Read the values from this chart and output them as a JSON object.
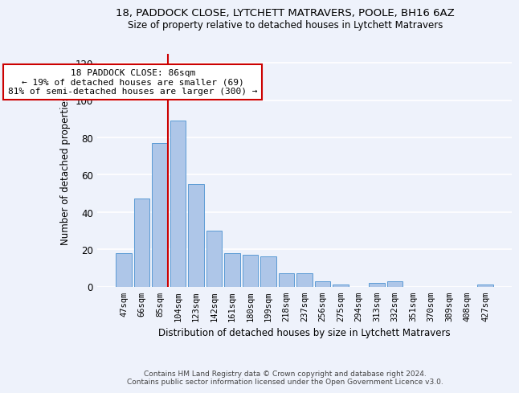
{
  "title": "18, PADDOCK CLOSE, LYTCHETT MATRAVERS, POOLE, BH16 6AZ",
  "subtitle": "Size of property relative to detached houses in Lytchett Matravers",
  "xlabel": "Distribution of detached houses by size in Lytchett Matravers",
  "ylabel": "Number of detached properties",
  "bar_labels": [
    "47sqm",
    "66sqm",
    "85sqm",
    "104sqm",
    "123sqm",
    "142sqm",
    "161sqm",
    "180sqm",
    "199sqm",
    "218sqm",
    "237sqm",
    "256sqm",
    "275sqm",
    "294sqm",
    "313sqm",
    "332sqm",
    "351sqm",
    "370sqm",
    "389sqm",
    "408sqm",
    "427sqm"
  ],
  "bar_values": [
    18,
    47,
    77,
    89,
    55,
    30,
    18,
    17,
    16,
    7,
    7,
    3,
    1,
    0,
    2,
    3,
    0,
    0,
    0,
    0,
    1
  ],
  "bar_color": "#aec6e8",
  "bar_edgecolor": "#5b9bd5",
  "background_color": "#eef2fb",
  "grid_color": "#ffffff",
  "vline_color": "#cc0000",
  "annotation_line1": "18 PADDOCK CLOSE: 86sqm",
  "annotation_line2": "← 19% of detached houses are smaller (69)",
  "annotation_line3": "81% of semi-detached houses are larger (300) →",
  "annotation_box_color": "#ffffff",
  "annotation_box_edgecolor": "#cc0000",
  "footer1": "Contains HM Land Registry data © Crown copyright and database right 2024.",
  "footer2": "Contains public sector information licensed under the Open Government Licence v3.0.",
  "ylim": [
    0,
    125
  ],
  "yticks": [
    0,
    20,
    40,
    60,
    80,
    100,
    120
  ],
  "title_fontsize": 9.5,
  "subtitle_fontsize": 8.5,
  "ylabel_fontsize": 8.5,
  "xlabel_fontsize": 8.5,
  "tick_fontsize": 7.5,
  "footer_fontsize": 6.5,
  "annot_fontsize": 8
}
